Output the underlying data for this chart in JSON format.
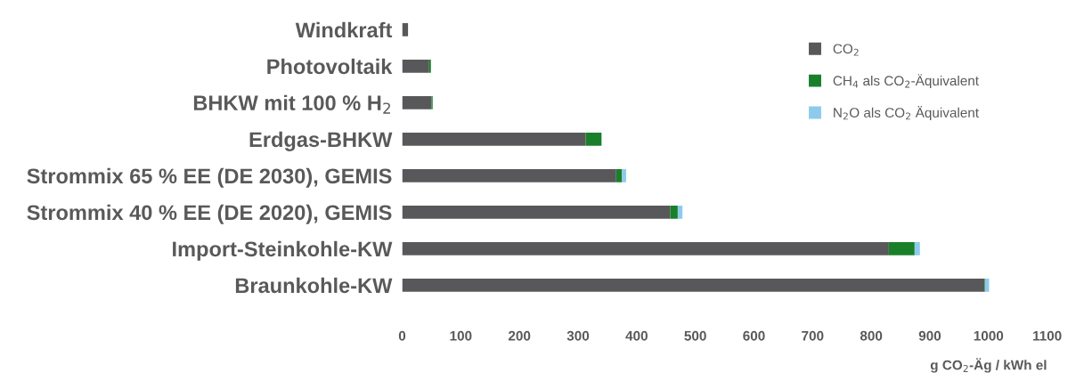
{
  "chart_data": {
    "type": "bar",
    "orientation": "horizontal",
    "stacked": true,
    "categories": [
      "Windkraft",
      "Photovoltaik",
      "BHKW mit 100 % H$_{2}$",
      "Erdgas-BHKW",
      "Strommix 65 % EE (DE 2030), GEMIS",
      "Strommix 40 % EE (DE 2020), GEMIS",
      "Import-Steinkohle-KW",
      "Braunkohle-KW"
    ],
    "series": [
      {
        "name": "CO$_{2}$",
        "color": "#58585a",
        "values": [
          10,
          46,
          50,
          313,
          365,
          457,
          830,
          993
        ]
      },
      {
        "name": "CH$_{4}$ als CO$_{2}$-Äquivalent",
        "color": "#1a7f2a",
        "values": [
          0,
          3,
          2,
          27,
          10,
          13,
          44,
          1
        ]
      },
      {
        "name": "N$_{2}$O als CO$_{2}$ Äquivalent",
        "color": "#8ecbeb",
        "values": [
          0,
          0,
          0,
          0,
          7,
          8,
          9,
          7
        ]
      }
    ],
    "xlim": [
      0,
      1100
    ],
    "xticks": [
      0,
      100,
      200,
      300,
      400,
      500,
      600,
      700,
      800,
      900,
      1000,
      1100
    ],
    "xlabel": "g CO$_{2}$-Äg / kWh el",
    "legend": "right",
    "grid": false
  }
}
